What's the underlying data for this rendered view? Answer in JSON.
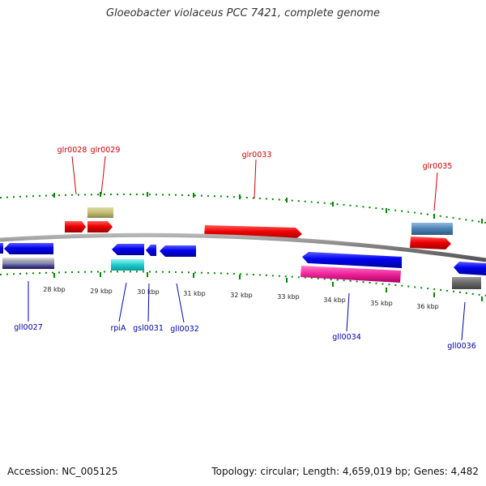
{
  "title": "Gloeobacter violaceus PCC 7421, complete genome",
  "footer": {
    "accession": "Accession: NC_005125",
    "summary": "Topology: circular; Length: 4,659,019 bp; Genes: 4,482"
  },
  "colors": {
    "forward_label": "#cc0000",
    "reverse_label": "#0000aa",
    "tick": "#008800",
    "backbone": "#808080"
  },
  "kbp_labels": [
    "28 kbp",
    "29 kbp",
    "30 kbp",
    "31 kbp",
    "32 kbp",
    "33 kbp",
    "34 kbp",
    "35 kbp",
    "36 kbp"
  ],
  "gene_labels": {
    "glr0028": "glr0028",
    "glr0029": "glr0029",
    "glr0033": "glr0033",
    "glr0035": "glr0035",
    "gll0027": "gll0027",
    "rpiA": "rpiA",
    "gsl0031": "gsl0031",
    "gll0032": "gll0032",
    "gll0034": "gll0034",
    "gll0036": "gll0036"
  }
}
